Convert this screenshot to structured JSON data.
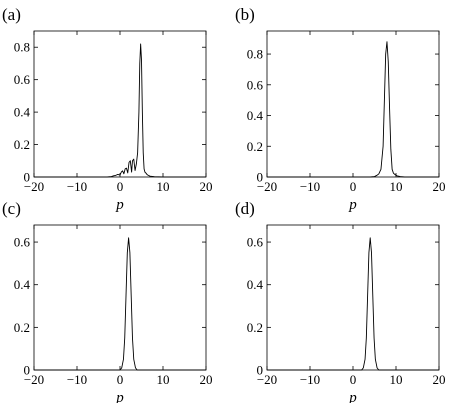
{
  "chart_data": [
    {
      "type": "line",
      "panel_label": "(a)",
      "xlabel": "p",
      "ylabel": "",
      "xlim": [
        -20,
        20
      ],
      "ylim": [
        0,
        0.9
      ],
      "xticks": [
        -20,
        -10,
        0,
        10,
        20
      ],
      "yticks": [
        0,
        0.2,
        0.4,
        0.6,
        0.8
      ],
      "ytick_labels": [
        "0",
        "0.2",
        "0.4",
        "0.6",
        "0.8"
      ],
      "grid": false,
      "series": [
        {
          "x": [
            -20,
            -3,
            -2,
            -1.5,
            -1,
            -0.5,
            0,
            0.3,
            0.6,
            0.9,
            1.2,
            1.5,
            1.8,
            2.1,
            2.4,
            2.7,
            2.9,
            3.2,
            3.5,
            3.8,
            4.1,
            4.4,
            4.6,
            4.8,
            5.0,
            5.2,
            5.4,
            5.6,
            5.8,
            6.0,
            6.3,
            6.6,
            7.0,
            8,
            10,
            20
          ],
          "y": [
            0,
            0,
            0.003,
            0.007,
            0.01,
            0.016,
            0.012,
            0.03,
            0.038,
            0.02,
            0.05,
            0.055,
            0.025,
            0.09,
            0.1,
            0.03,
            0.1,
            0.11,
            0.04,
            0.08,
            0.15,
            0.4,
            0.7,
            0.82,
            0.72,
            0.4,
            0.15,
            0.05,
            0.03,
            0.025,
            0.015,
            0.01,
            0.005,
            0.002,
            0,
            0
          ]
        }
      ]
    },
    {
      "type": "line",
      "panel_label": "(b)",
      "xlabel": "p",
      "ylabel": "",
      "xlim": [
        -20,
        20
      ],
      "ylim": [
        0,
        0.95
      ],
      "xticks": [
        -20,
        -10,
        0,
        10,
        20
      ],
      "yticks": [
        0,
        0.2,
        0.4,
        0.6,
        0.8
      ],
      "ytick_labels": [
        "0",
        "0.2",
        "0.4",
        "0.6",
        "0.8"
      ],
      "grid": false,
      "series": [
        {
          "x": [
            -20,
            4,
            5,
            5.5,
            6,
            6.5,
            7,
            7.3,
            7.6,
            7.9,
            8.2,
            8.5,
            8.8,
            9.1,
            9.4,
            9.8,
            10.2,
            11,
            12,
            20
          ],
          "y": [
            0,
            0,
            0.003,
            0.01,
            0.02,
            0.05,
            0.2,
            0.5,
            0.8,
            0.88,
            0.75,
            0.45,
            0.18,
            0.05,
            0.025,
            0.015,
            0.008,
            0.003,
            0,
            0
          ]
        }
      ]
    },
    {
      "type": "line",
      "panel_label": "(c)",
      "xlabel": "p",
      "ylabel": "",
      "xlim": [
        -20,
        20
      ],
      "ylim": [
        0,
        0.68
      ],
      "xticks": [
        -20,
        -10,
        0,
        10,
        20
      ],
      "yticks": [
        0,
        0.2,
        0.4,
        0.6
      ],
      "ytick_labels": [
        "0",
        "0.2",
        "0.4",
        "0.6"
      ],
      "grid": false,
      "series": [
        {
          "x": [
            -20,
            0,
            0.4,
            0.8,
            1.1,
            1.4,
            1.7,
            2.0,
            2.3,
            2.6,
            2.9,
            3.2,
            3.6,
            4.0,
            20
          ],
          "y": [
            0,
            0,
            0.01,
            0.05,
            0.15,
            0.35,
            0.55,
            0.62,
            0.55,
            0.35,
            0.15,
            0.05,
            0.01,
            0,
            0
          ]
        }
      ]
    },
    {
      "type": "line",
      "panel_label": "(d)",
      "xlabel": "p",
      "ylabel": "",
      "xlim": [
        -20,
        20
      ],
      "ylim": [
        0,
        0.68
      ],
      "xticks": [
        -20,
        -10,
        0,
        10,
        20
      ],
      "yticks": [
        0,
        0.2,
        0.4,
        0.6
      ],
      "ytick_labels": [
        "0",
        "0.2",
        "0.4",
        "0.6"
      ],
      "grid": false,
      "series": [
        {
          "x": [
            -20,
            2,
            2.4,
            2.8,
            3.1,
            3.4,
            3.7,
            4.0,
            4.3,
            4.6,
            4.9,
            5.2,
            5.6,
            6.0,
            20
          ],
          "y": [
            0,
            0,
            0.01,
            0.05,
            0.15,
            0.35,
            0.55,
            0.62,
            0.55,
            0.35,
            0.15,
            0.05,
            0.01,
            0,
            0
          ]
        }
      ]
    }
  ]
}
